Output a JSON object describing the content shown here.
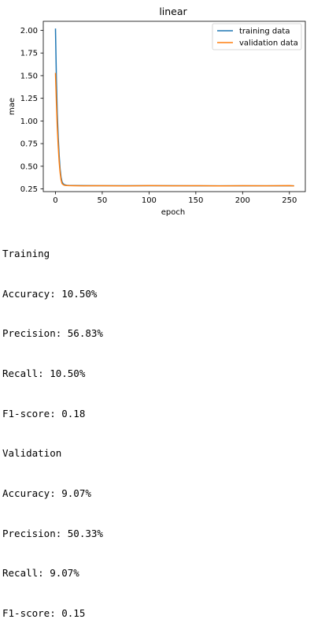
{
  "chart_data": {
    "type": "line",
    "title": "linear",
    "xlabel": "epoch",
    "ylabel": "mae",
    "xlim": [
      -13,
      267
    ],
    "ylim": [
      0.22,
      2.1
    ],
    "xticks": [
      "0",
      "50",
      "100",
      "150",
      "200",
      "250"
    ],
    "yticks": [
      "2.00",
      "1.75",
      "1.50",
      "1.25",
      "1.00",
      "0.75",
      "0.50",
      "0.25"
    ],
    "legend_position": "top-right",
    "series": [
      {
        "name": "training data",
        "color": "#1f77b4",
        "x": [
          0,
          1,
          2,
          3,
          4,
          5,
          6,
          7,
          8,
          9,
          10,
          12,
          15,
          20,
          30,
          50,
          75,
          100,
          125,
          150,
          175,
          200,
          225,
          250,
          255
        ],
        "y": [
          2.02,
          1.45,
          1.08,
          0.82,
          0.62,
          0.47,
          0.38,
          0.33,
          0.31,
          0.3,
          0.295,
          0.29,
          0.288,
          0.287,
          0.286,
          0.285,
          0.285,
          0.285,
          0.285,
          0.284,
          0.284,
          0.284,
          0.284,
          0.284,
          0.284
        ]
      },
      {
        "name": "validation data",
        "color": "#ff7f0e",
        "x": [
          0,
          1,
          2,
          3,
          4,
          5,
          6,
          7,
          8,
          9,
          10,
          12,
          15,
          20,
          30,
          50,
          75,
          100,
          125,
          150,
          175,
          200,
          225,
          250,
          255
        ],
        "y": [
          1.53,
          1.2,
          0.93,
          0.72,
          0.55,
          0.43,
          0.35,
          0.31,
          0.3,
          0.292,
          0.29,
          0.288,
          0.286,
          0.285,
          0.284,
          0.285,
          0.283,
          0.286,
          0.284,
          0.285,
          0.283,
          0.285,
          0.284,
          0.286,
          0.283
        ]
      }
    ]
  },
  "output": {
    "lines": [
      "Training",
      "Accuracy: 10.50%",
      "Precision: 56.83%",
      "Recall: 10.50%",
      "F1-score: 0.18",
      "Validation",
      "Accuracy: 9.07%",
      "Precision: 50.33%",
      "Recall: 9.07%",
      "F1-score: 0.15"
    ]
  }
}
